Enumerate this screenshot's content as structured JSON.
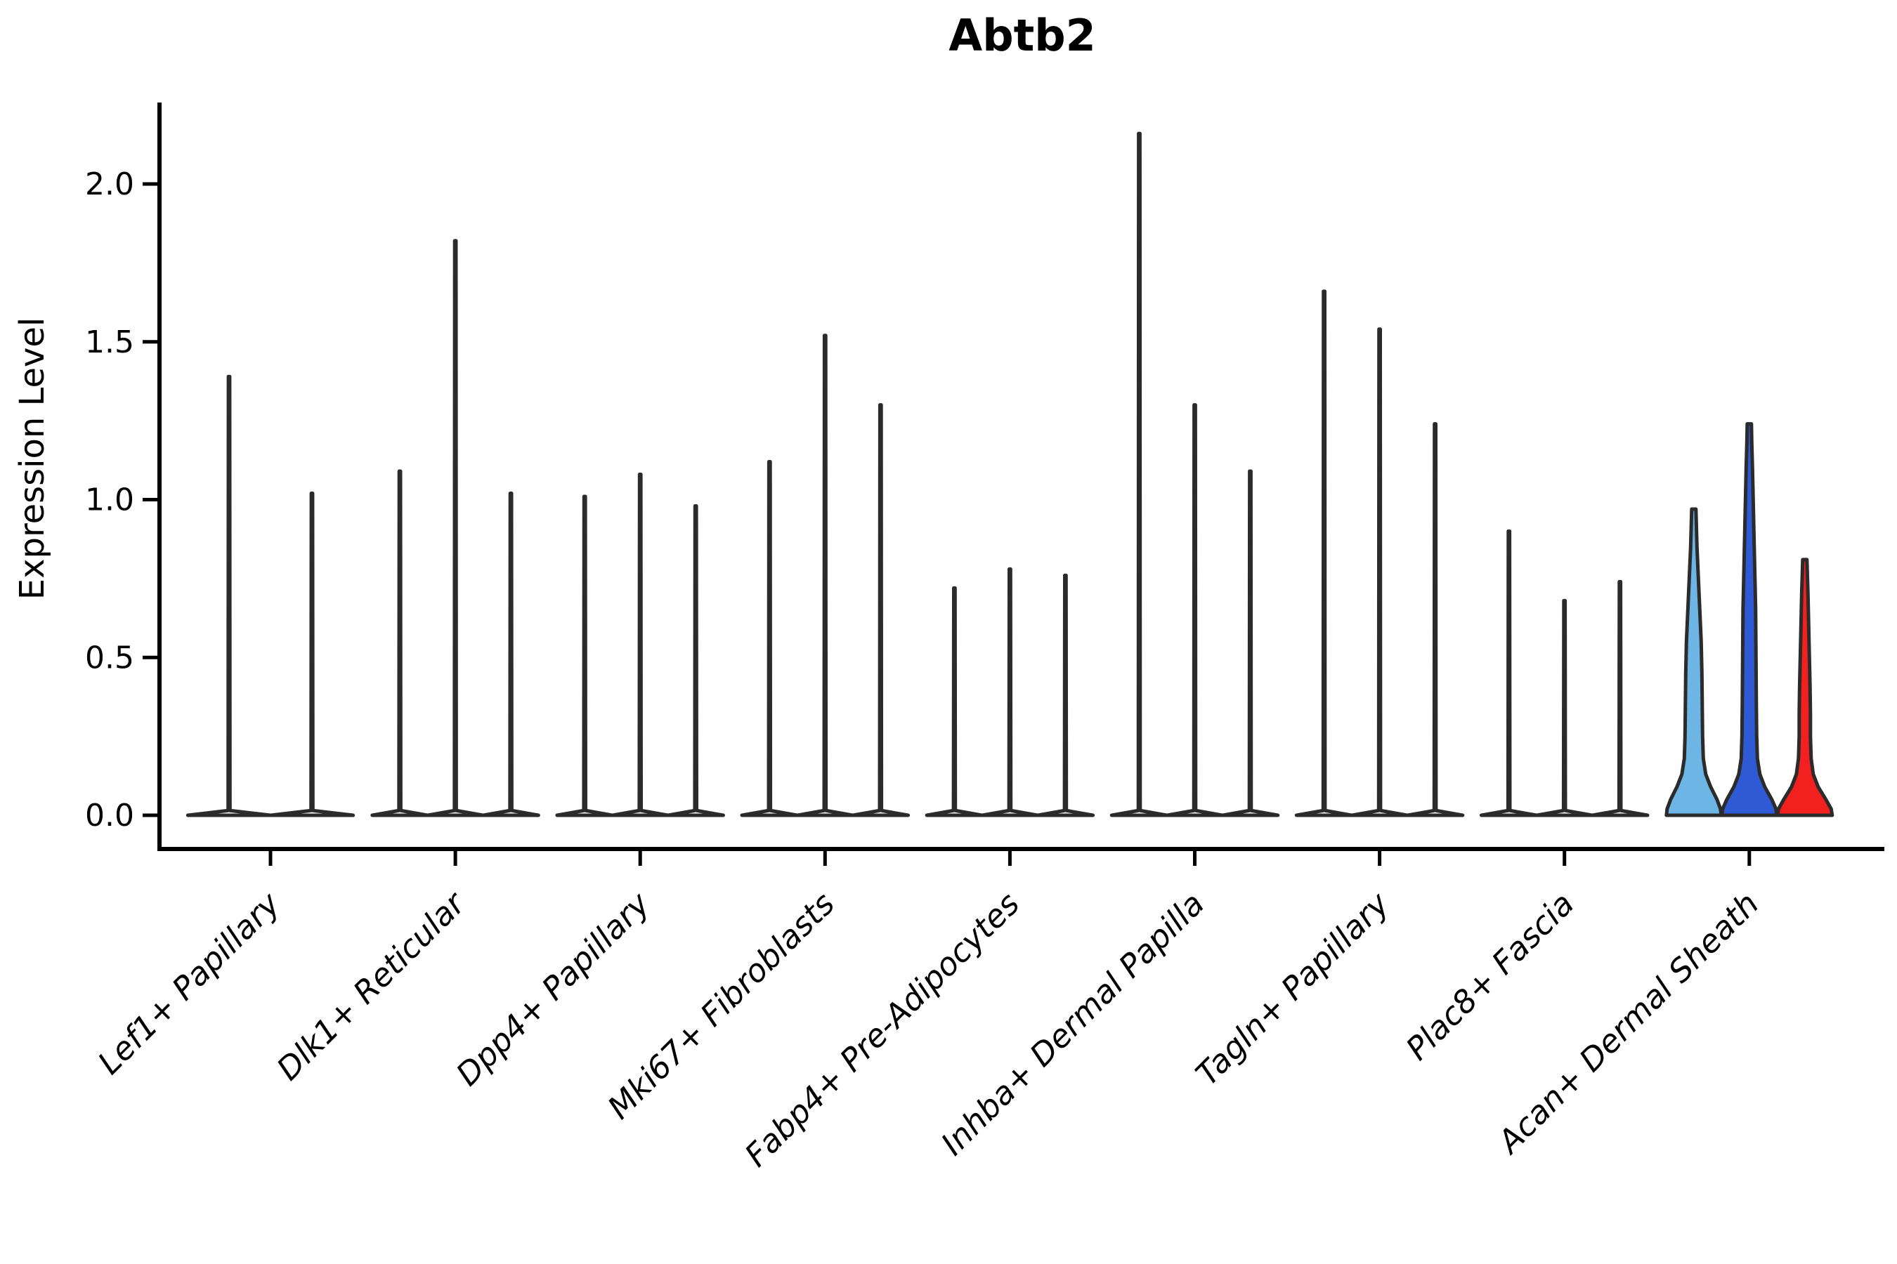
{
  "title": "Abtb2",
  "axes": {
    "y_label": "Expression Level",
    "y_tick_labels": [
      "0.0",
      "0.5",
      "1.0",
      "1.5",
      "2.0"
    ],
    "x_tick_labels": [
      "Lef1+ Papillary",
      "Dlk1+ Reticular",
      "Dpp4+ Papillary",
      "Mki67+ Fibroblasts",
      "Fabp4+ Pre-Adipocytes",
      "Inhba+ Dermal Papilla",
      "Tagln+ Papillary",
      "Plac8+ Fascia",
      "Acan+ Dermal Sheath"
    ]
  },
  "chart_data": {
    "type": "violin",
    "title": "Abtb2",
    "xlabel": "",
    "ylabel": "Expression Level",
    "ylim": [
      0,
      2.26
    ],
    "y_ticks": [
      0.0,
      0.5,
      1.0,
      1.5,
      2.0
    ],
    "grid": false,
    "legend": "none",
    "outline_color": "#2b2b2b",
    "categories": [
      "Lef1+ Papillary",
      "Dlk1+ Reticular",
      "Dpp4+ Papillary",
      "Mki67+ Fibroblasts",
      "Fabp4+ Pre-Adipocytes",
      "Inhba+ Dermal Papilla",
      "Tagln+ Papillary",
      "Plac8+ Fascia",
      "Acan+ Dermal Sheath"
    ],
    "groups": [
      {
        "category": "Lef1+ Papillary",
        "violins": [
          {
            "max": 1.39,
            "fill": "#ffffff",
            "shape": "spike"
          },
          {
            "max": 1.02,
            "fill": "#ffffff",
            "shape": "spike"
          }
        ]
      },
      {
        "category": "Dlk1+ Reticular",
        "violins": [
          {
            "max": 1.09,
            "fill": "#ffffff",
            "shape": "spike"
          },
          {
            "max": 1.82,
            "fill": "#ffffff",
            "shape": "spike"
          },
          {
            "max": 1.02,
            "fill": "#ffffff",
            "shape": "spike"
          }
        ]
      },
      {
        "category": "Dpp4+ Papillary",
        "violins": [
          {
            "max": 1.01,
            "fill": "#ffffff",
            "shape": "spike"
          },
          {
            "max": 1.08,
            "fill": "#ffffff",
            "shape": "spike"
          },
          {
            "max": 0.98,
            "fill": "#ffffff",
            "shape": "spike"
          }
        ]
      },
      {
        "category": "Mki67+ Fibroblasts",
        "violins": [
          {
            "max": 1.12,
            "fill": "#ffffff",
            "shape": "spike"
          },
          {
            "max": 1.52,
            "fill": "#ffffff",
            "shape": "spike"
          },
          {
            "max": 1.3,
            "fill": "#ffffff",
            "shape": "spike"
          }
        ]
      },
      {
        "category": "Fabp4+ Pre-Adipocytes",
        "violins": [
          {
            "max": 0.72,
            "fill": "#ffffff",
            "shape": "spike"
          },
          {
            "max": 0.78,
            "fill": "#ffffff",
            "shape": "spike"
          },
          {
            "max": 0.76,
            "fill": "#ffffff",
            "shape": "spike"
          }
        ]
      },
      {
        "category": "Inhba+ Dermal Papilla",
        "violins": [
          {
            "max": 2.16,
            "fill": "#ffffff",
            "shape": "spike"
          },
          {
            "max": 1.3,
            "fill": "#ffffff",
            "shape": "spike"
          },
          {
            "max": 1.09,
            "fill": "#ffffff",
            "shape": "spike"
          }
        ]
      },
      {
        "category": "Tagln+ Papillary",
        "violins": [
          {
            "max": 1.66,
            "fill": "#ffffff",
            "shape": "spike"
          },
          {
            "max": 1.54,
            "fill": "#ffffff",
            "shape": "spike"
          },
          {
            "max": 1.24,
            "fill": "#ffffff",
            "shape": "spike"
          }
        ]
      },
      {
        "category": "Plac8+ Fascia",
        "violins": [
          {
            "max": 0.9,
            "fill": "#ffffff",
            "shape": "spike"
          },
          {
            "max": 0.68,
            "fill": "#ffffff",
            "shape": "spike"
          },
          {
            "max": 0.74,
            "fill": "#ffffff",
            "shape": "spike"
          }
        ]
      },
      {
        "category": "Acan+ Dermal Sheath",
        "violins": [
          {
            "max": 0.97,
            "fill": "#6db5e5",
            "shape": "filled",
            "profile": [
              [
                0,
                39
              ],
              [
                0.02,
                38
              ],
              [
                0.05,
                33
              ],
              [
                0.09,
                24
              ],
              [
                0.13,
                17
              ],
              [
                0.18,
                13.5
              ],
              [
                0.25,
                12.5
              ],
              [
                0.35,
                12
              ],
              [
                0.45,
                11.5
              ],
              [
                0.55,
                10.5
              ],
              [
                0.65,
                8.5
              ],
              [
                0.75,
                6.5
              ],
              [
                0.85,
                4.5
              ],
              [
                0.93,
                3.5
              ],
              [
                0.97,
                3
              ]
            ]
          },
          {
            "max": 1.24,
            "fill": "#2f5ad6",
            "shape": "filled",
            "profile": [
              [
                0,
                39
              ],
              [
                0.02,
                38
              ],
              [
                0.05,
                32
              ],
              [
                0.09,
                22
              ],
              [
                0.13,
                15
              ],
              [
                0.18,
                11.5
              ],
              [
                0.25,
                10.5
              ],
              [
                0.35,
                10
              ],
              [
                0.5,
                9.5
              ],
              [
                0.65,
                9
              ],
              [
                0.8,
                7.5
              ],
              [
                0.95,
                6
              ],
              [
                1.1,
                4.5
              ],
              [
                1.18,
                3.5
              ],
              [
                1.24,
                3
              ]
            ]
          },
          {
            "max": 0.81,
            "fill": "#f2201e",
            "shape": "filled",
            "profile": [
              [
                0,
                39
              ],
              [
                0.02,
                37.5
              ],
              [
                0.05,
                30
              ],
              [
                0.09,
                19
              ],
              [
                0.13,
                12
              ],
              [
                0.18,
                9
              ],
              [
                0.25,
                8
              ],
              [
                0.32,
                8
              ],
              [
                0.4,
                7.5
              ],
              [
                0.5,
                6.5
              ],
              [
                0.6,
                5.5
              ],
              [
                0.7,
                4.5
              ],
              [
                0.81,
                3
              ]
            ]
          }
        ]
      }
    ]
  }
}
